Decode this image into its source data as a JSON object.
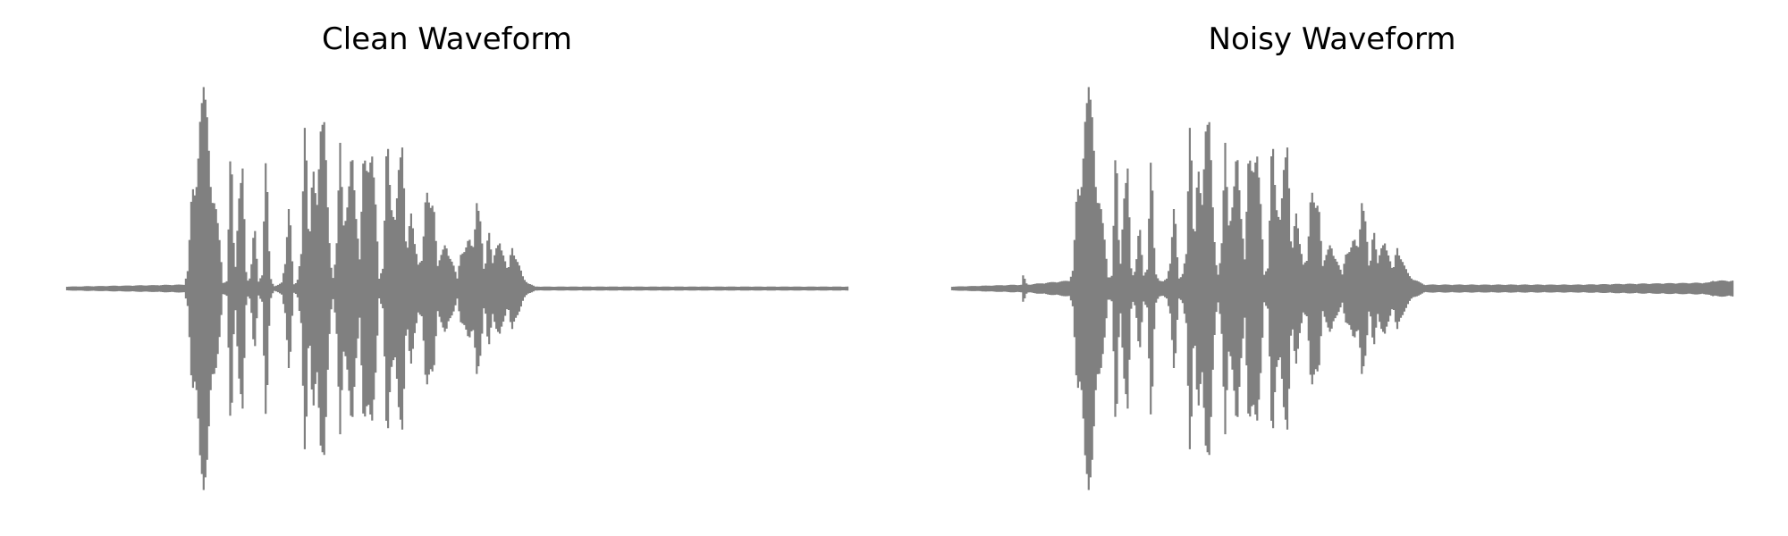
{
  "colors": {
    "waveform": "#808080",
    "background": "#ffffff",
    "title": "#000000"
  },
  "chart_data": [
    {
      "type": "line",
      "title": "Clean Waveform",
      "xlabel": "",
      "ylabel": "",
      "axes_visible": false,
      "grid": false,
      "ylim": [
        -1,
        1
      ],
      "xlim": [
        0,
        1
      ],
      "envelope": {
        "x": [
          0.0,
          0.15,
          0.155,
          0.16,
          0.165,
          0.17,
          0.175,
          0.18,
          0.185,
          0.19,
          0.195,
          0.2,
          0.205,
          0.21,
          0.215,
          0.22,
          0.225,
          0.23,
          0.235,
          0.24,
          0.245,
          0.25,
          0.255,
          0.26,
          0.265,
          0.27,
          0.275,
          0.28,
          0.285,
          0.29,
          0.295,
          0.3,
          0.305,
          0.31,
          0.315,
          0.32,
          0.325,
          0.33,
          0.335,
          0.34,
          0.345,
          0.35,
          0.355,
          0.36,
          0.365,
          0.37,
          0.375,
          0.38,
          0.385,
          0.39,
          0.395,
          0.4,
          0.405,
          0.41,
          0.415,
          0.42,
          0.425,
          0.43,
          0.435,
          0.44,
          0.445,
          0.45,
          0.455,
          0.46,
          0.465,
          0.47,
          0.475,
          0.48,
          0.485,
          0.49,
          0.495,
          0.5,
          0.505,
          0.51,
          0.515,
          0.52,
          0.525,
          0.53,
          0.535,
          0.54,
          0.545,
          0.55,
          0.555,
          0.56,
          0.565,
          0.57,
          0.575,
          0.58,
          0.585,
          0.59,
          0.595,
          0.6,
          0.605,
          0.61,
          0.615,
          0.62,
          1.0
        ],
        "upper": [
          0.01,
          0.02,
          0.1,
          0.5,
          0.46,
          0.9,
          1.0,
          0.84,
          0.5,
          0.43,
          0.26,
          0.03,
          0.04,
          0.76,
          0.03,
          0.49,
          0.6,
          0.03,
          0.06,
          0.35,
          0.03,
          0.07,
          0.75,
          0.06,
          0.01,
          0.02,
          0.03,
          0.13,
          0.49,
          0.02,
          0.03,
          0.18,
          0.97,
          0.15,
          0.63,
          0.45,
          0.8,
          0.82,
          0.34,
          0.03,
          0.17,
          0.75,
          0.32,
          0.43,
          0.7,
          0.42,
          0.15,
          0.66,
          0.6,
          0.75,
          0.45,
          0.05,
          0.12,
          0.8,
          0.4,
          0.36,
          0.62,
          0.7,
          0.14,
          0.44,
          0.23,
          0.12,
          0.16,
          0.51,
          0.39,
          0.45,
          0.12,
          0.17,
          0.23,
          0.17,
          0.12,
          0.05,
          0.2,
          0.19,
          0.25,
          0.2,
          0.46,
          0.32,
          0.05,
          0.35,
          0.12,
          0.2,
          0.25,
          0.16,
          0.08,
          0.22,
          0.16,
          0.11,
          0.05,
          0.03,
          0.02,
          0.01,
          0.01,
          0.01,
          0.01,
          0.01,
          0.01
        ]
      }
    },
    {
      "type": "line",
      "title": "Noisy Waveform",
      "xlabel": "",
      "ylabel": "",
      "axes_visible": false,
      "grid": false,
      "ylim": [
        -1,
        1
      ],
      "xlim": [
        0,
        1
      ],
      "envelope": {
        "x": [
          0.0,
          0.09,
          0.091,
          0.096,
          0.15,
          0.155,
          0.16,
          0.165,
          0.17,
          0.175,
          0.18,
          0.185,
          0.19,
          0.195,
          0.2,
          0.205,
          0.21,
          0.215,
          0.22,
          0.225,
          0.23,
          0.235,
          0.24,
          0.245,
          0.25,
          0.255,
          0.26,
          0.265,
          0.27,
          0.275,
          0.28,
          0.285,
          0.29,
          0.295,
          0.3,
          0.305,
          0.31,
          0.315,
          0.32,
          0.325,
          0.33,
          0.335,
          0.34,
          0.345,
          0.35,
          0.355,
          0.36,
          0.365,
          0.37,
          0.375,
          0.38,
          0.385,
          0.39,
          0.395,
          0.4,
          0.405,
          0.41,
          0.415,
          0.42,
          0.425,
          0.43,
          0.435,
          0.44,
          0.445,
          0.45,
          0.455,
          0.46,
          0.465,
          0.47,
          0.475,
          0.48,
          0.485,
          0.49,
          0.495,
          0.5,
          0.505,
          0.51,
          0.515,
          0.52,
          0.525,
          0.53,
          0.535,
          0.54,
          0.545,
          0.55,
          0.555,
          0.56,
          0.565,
          0.57,
          0.575,
          0.58,
          0.585,
          0.59,
          0.595,
          0.6,
          0.605,
          0.61,
          0.615,
          0.62,
          0.8,
          0.97,
          0.975,
          1.0
        ],
        "upper": [
          0.01,
          0.02,
          0.07,
          0.02,
          0.04,
          0.1,
          0.5,
          0.46,
          0.9,
          1.0,
          0.84,
          0.5,
          0.43,
          0.26,
          0.06,
          0.07,
          0.76,
          0.05,
          0.49,
          0.6,
          0.05,
          0.1,
          0.35,
          0.06,
          0.1,
          0.75,
          0.08,
          0.04,
          0.04,
          0.05,
          0.13,
          0.49,
          0.05,
          0.06,
          0.18,
          0.97,
          0.15,
          0.63,
          0.45,
          0.8,
          0.82,
          0.34,
          0.05,
          0.17,
          0.75,
          0.32,
          0.43,
          0.7,
          0.42,
          0.15,
          0.66,
          0.6,
          0.75,
          0.45,
          0.07,
          0.12,
          0.8,
          0.4,
          0.36,
          0.62,
          0.7,
          0.14,
          0.44,
          0.23,
          0.12,
          0.16,
          0.51,
          0.39,
          0.45,
          0.12,
          0.17,
          0.23,
          0.17,
          0.12,
          0.07,
          0.2,
          0.19,
          0.25,
          0.2,
          0.46,
          0.32,
          0.07,
          0.35,
          0.12,
          0.2,
          0.25,
          0.16,
          0.08,
          0.22,
          0.16,
          0.11,
          0.07,
          0.05,
          0.04,
          0.03,
          0.02,
          0.02,
          0.02,
          0.02,
          0.02,
          0.03,
          0.04,
          0.04
        ]
      }
    }
  ]
}
